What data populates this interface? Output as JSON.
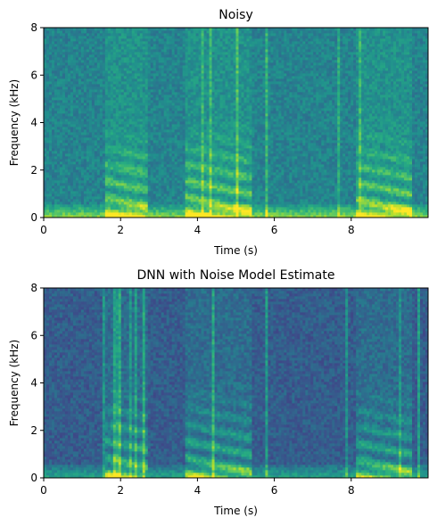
{
  "chart_data": [
    {
      "type": "heatmap",
      "title": "Noisy",
      "xlabel": "Time (s)",
      "ylabel": "Frequency (kHz)",
      "xlim": [
        0,
        10
      ],
      "ylim": [
        0,
        8
      ],
      "xticks": [
        "0",
        "2",
        "4",
        "6",
        "8"
      ],
      "xtick_values": [
        0,
        2,
        4,
        6,
        8
      ],
      "yticks": [
        "0",
        "2",
        "4",
        "6",
        "8"
      ],
      "ytick_values": [
        0,
        2,
        4,
        6,
        8
      ],
      "colormap": "viridis",
      "speech_segments_s": [
        [
          1.6,
          2.7
        ],
        [
          3.7,
          5.4
        ],
        [
          8.1,
          9.6
        ]
      ],
      "background_level": 0.45,
      "low_freq_noise_level": 0.8
    },
    {
      "type": "heatmap",
      "title": "DNN with Noise Model Estimate",
      "xlabel": "Time (s)",
      "ylabel": "Frequency (kHz)",
      "xlim": [
        0,
        10
      ],
      "ylim": [
        0,
        8
      ],
      "xticks": [
        "0",
        "2",
        "4",
        "6",
        "8"
      ],
      "xtick_values": [
        0,
        2,
        4,
        6,
        8
      ],
      "yticks": [
        "0",
        "2",
        "4",
        "6",
        "8"
      ],
      "ytick_values": [
        0,
        2,
        4,
        6,
        8
      ],
      "colormap": "viridis",
      "speech_segments_s": [
        [
          1.6,
          2.7
        ],
        [
          3.7,
          5.4
        ],
        [
          8.1,
          9.6
        ]
      ],
      "background_level": 0.3,
      "low_freq_noise_level": 0.55
    }
  ]
}
